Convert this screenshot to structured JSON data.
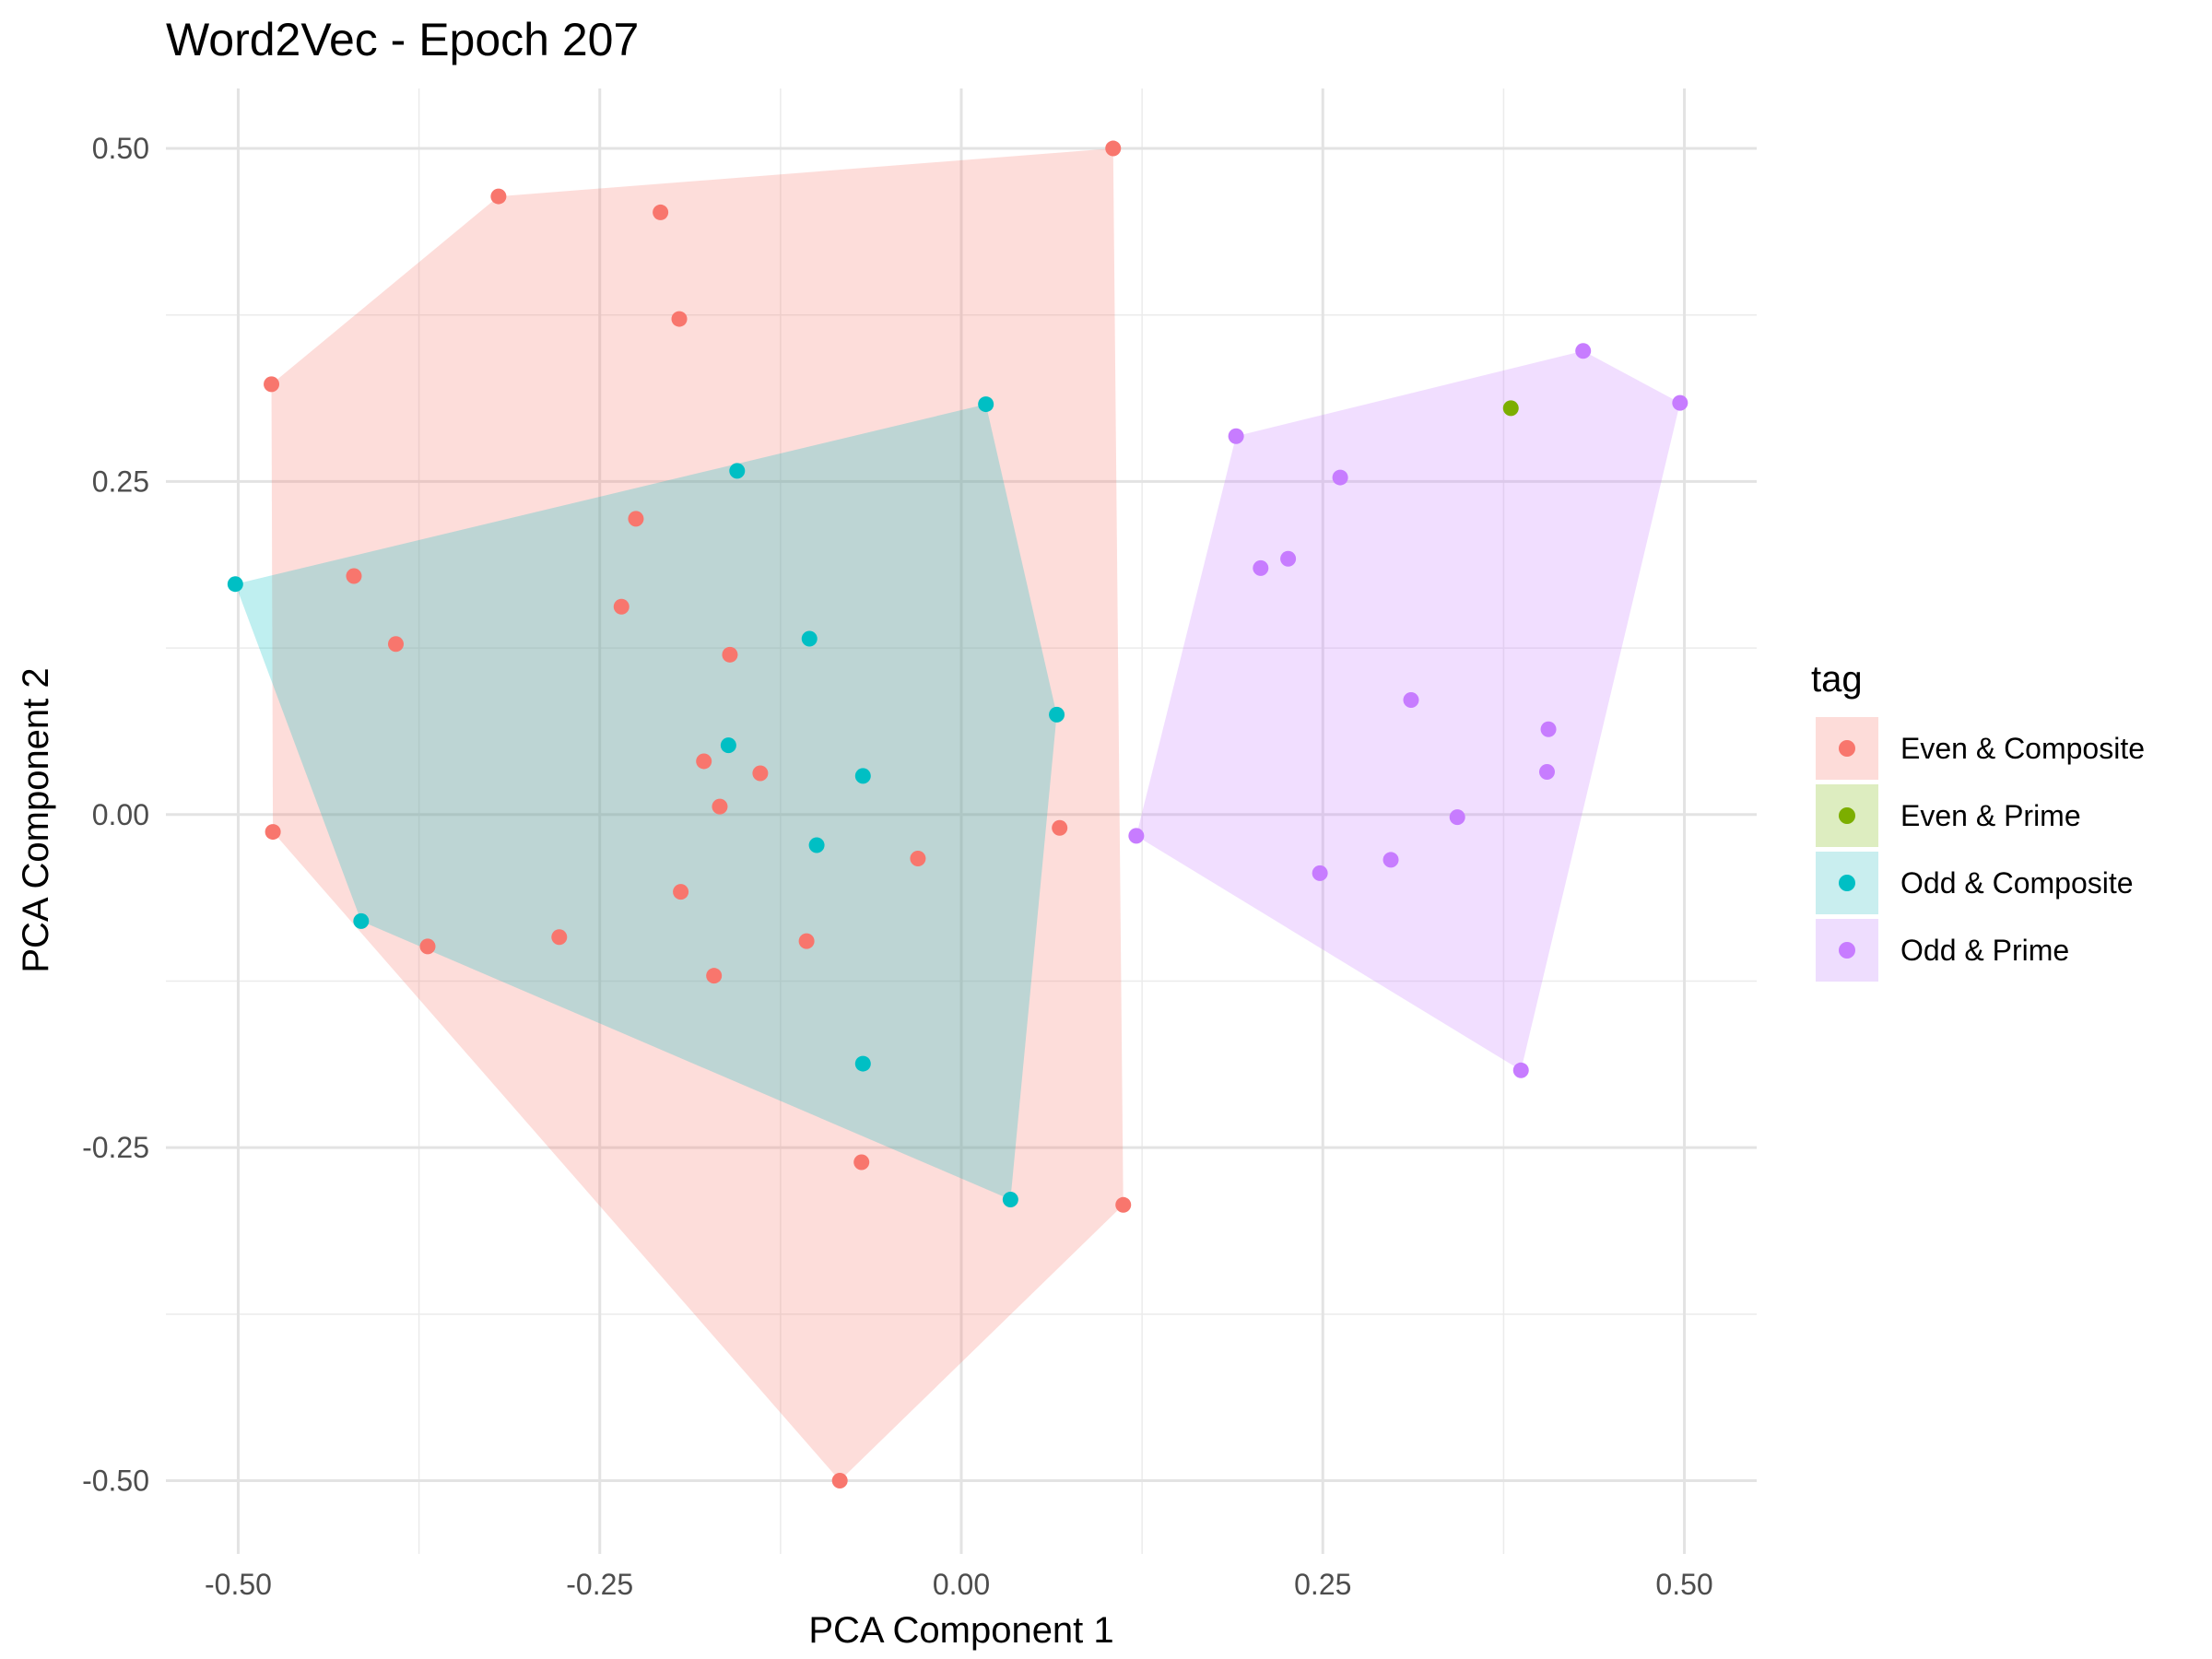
{
  "chart_data": {
    "type": "scatter",
    "title": "Word2Vec - Epoch 207",
    "xlabel": "PCA Component 1",
    "ylabel": "PCA Component 2",
    "xlim": [
      -0.55,
      0.55
    ],
    "ylim": [
      -0.555,
      0.545
    ],
    "x_ticks": [
      -0.5,
      -0.25,
      0.0,
      0.25,
      0.5
    ],
    "x_tick_labels": [
      "-0.50",
      "-0.25",
      "0.00",
      "0.25",
      "0.50"
    ],
    "y_ticks": [
      -0.5,
      -0.25,
      0.0,
      0.25,
      0.5
    ],
    "y_tick_labels": [
      "-0.50",
      "-0.25",
      "0.00",
      "0.25",
      "0.50"
    ],
    "grid": true,
    "legend": {
      "title": "tag",
      "position": "right"
    },
    "hulls": true,
    "series": [
      {
        "name": "Even & Composite",
        "color": "#F8766D",
        "fill": "#FDDCD9",
        "points": [
          [
            0.105,
            0.5
          ],
          [
            -0.32,
            0.464
          ],
          [
            -0.208,
            0.452
          ],
          [
            -0.195,
            0.372
          ],
          [
            -0.477,
            0.323
          ],
          [
            -0.225,
            0.222
          ],
          [
            -0.42,
            0.179
          ],
          [
            -0.235,
            0.156
          ],
          [
            -0.391,
            0.128
          ],
          [
            -0.16,
            0.12
          ],
          [
            -0.178,
            0.04
          ],
          [
            -0.139,
            0.031
          ],
          [
            -0.167,
            0.006
          ],
          [
            0.068,
            -0.01
          ],
          [
            -0.476,
            -0.013
          ],
          [
            -0.03,
            -0.033
          ],
          [
            -0.194,
            -0.058
          ],
          [
            -0.278,
            -0.092
          ],
          [
            -0.107,
            -0.095
          ],
          [
            -0.369,
            -0.099
          ],
          [
            -0.171,
            -0.121
          ],
          [
            -0.069,
            -0.261
          ],
          [
            0.112,
            -0.293
          ],
          [
            -0.084,
            -0.5
          ]
        ],
        "hull": [
          [
            0.105,
            0.5
          ],
          [
            0.112,
            -0.293
          ],
          [
            -0.084,
            -0.5
          ],
          [
            -0.476,
            -0.013
          ],
          [
            -0.477,
            0.323
          ],
          [
            -0.32,
            0.464
          ]
        ]
      },
      {
        "name": "Even & Prime",
        "color": "#7CAE00",
        "fill": "#DDEDC0",
        "points": [
          [
            0.38,
            0.305
          ]
        ],
        "hull": []
      },
      {
        "name": "Odd & Composite",
        "color": "#00BFC4",
        "fill": "#C9EEEF",
        "points": [
          [
            0.017,
            0.308
          ],
          [
            -0.155,
            0.258
          ],
          [
            -0.502,
            0.173
          ],
          [
            -0.105,
            0.132
          ],
          [
            0.066,
            0.075
          ],
          [
            -0.161,
            0.052
          ],
          [
            -0.068,
            0.029
          ],
          [
            -0.1,
            -0.023
          ],
          [
            -0.415,
            -0.08
          ],
          [
            -0.068,
            -0.187
          ],
          [
            0.034,
            -0.289
          ]
        ],
        "hull": [
          [
            -0.502,
            0.173
          ],
          [
            0.017,
            0.308
          ],
          [
            0.066,
            0.075
          ],
          [
            0.034,
            -0.289
          ],
          [
            -0.415,
            -0.08
          ]
        ]
      },
      {
        "name": "Odd & Prime",
        "color": "#C77CFF",
        "fill": "#EEDDFE",
        "points": [
          [
            0.43,
            0.348
          ],
          [
            0.497,
            0.309
          ],
          [
            0.19,
            0.284
          ],
          [
            0.262,
            0.253
          ],
          [
            0.226,
            0.192
          ],
          [
            0.207,
            0.185
          ],
          [
            0.311,
            0.086
          ],
          [
            0.406,
            0.064
          ],
          [
            0.405,
            0.032
          ],
          [
            0.343,
            -0.002
          ],
          [
            0.121,
            -0.016
          ],
          [
            0.297,
            -0.034
          ],
          [
            0.248,
            -0.044
          ],
          [
            0.387,
            -0.192
          ]
        ],
        "hull": [
          [
            0.19,
            0.284
          ],
          [
            0.43,
            0.348
          ],
          [
            0.497,
            0.309
          ],
          [
            0.387,
            -0.192
          ],
          [
            0.121,
            -0.016
          ]
        ]
      }
    ]
  }
}
